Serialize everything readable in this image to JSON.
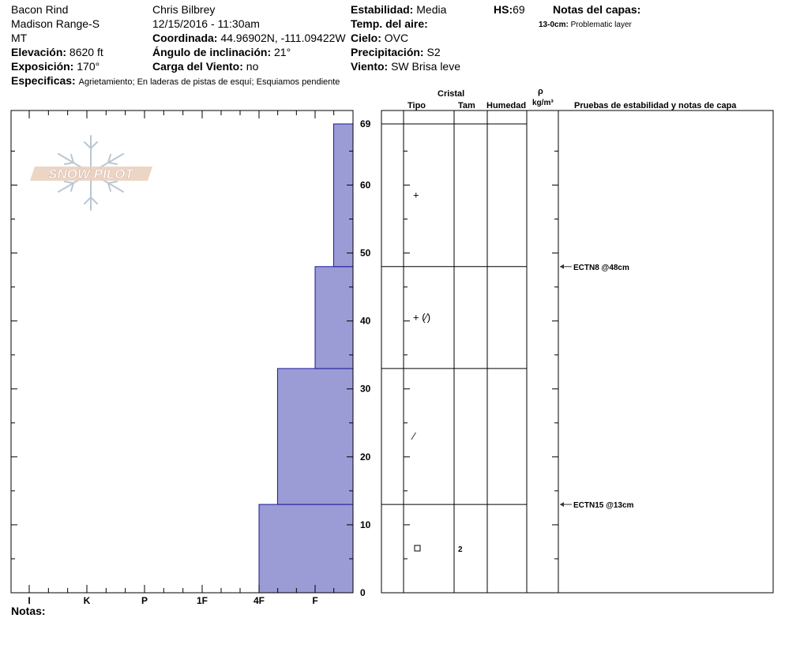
{
  "header": {
    "site": "Bacon Rind",
    "range": "Madison Range-S",
    "state": "MT",
    "elevation_label": "Elevación:",
    "elevation_value": "8620 ft",
    "aspect_label": "Exposición:",
    "aspect_value": "170°",
    "observer": "Chris Bilbrey",
    "datetime": "12/15/2016 - 11:30am",
    "coord_label": "Coordinada:",
    "coord_value": "44.96902N, -111.09422W",
    "slope_label": "Ángulo de inclinación:",
    "slope_value": "21°",
    "wind_load_label": "Carga del Viento:",
    "wind_load_value": "no",
    "stability_label": "Estabilidad:",
    "stability_value": "Media",
    "air_temp_label": "Temp. del aire:",
    "sky_label": "Cielo:",
    "sky_value": "OVC",
    "precip_label": "Precipitación:",
    "precip_value": "S2",
    "wind_label": "Viento:",
    "wind_value": "SW Brisa leve",
    "hs_label": "HS:",
    "hs_value": "69",
    "layer_notes_label": "Notas del capas:",
    "layer_note_depth": "13-0cm:",
    "layer_note_text": "Problematic layer",
    "specifics_label": "Especificas:",
    "specifics_value": "Agrietamiento;  En laderas de pistas de esquí;  Esquiamos pendiente"
  },
  "columns": {
    "crystal": "Cristal",
    "type": "Tipo",
    "size": "Tam",
    "humidity": "Humedad",
    "rho": "ρ",
    "density_unit": "kg/m³",
    "tests": "Pruebas de estabilidad y notas de capa"
  },
  "notes_label": "Notas:",
  "logo_text": "SNOW PILOT",
  "colors": {
    "hardness_fill": "#9b9bd5",
    "hardness_stroke": "#1a1a9a"
  },
  "chart_data": {
    "type": "bar",
    "title": "",
    "xlabel": "",
    "ylabel": "",
    "x_categories": [
      "I",
      "K",
      "P",
      "1F",
      "4F",
      "F"
    ],
    "ylim": [
      0,
      69
    ],
    "y_ticks": [
      "0",
      "10",
      "20",
      "30",
      "40",
      "50",
      "60",
      "69"
    ],
    "hardness_profile": [
      {
        "bottom": 0,
        "top": 13,
        "hardness_index": 4.0
      },
      {
        "bottom": 13,
        "top": 33,
        "hardness_index": 4.33
      },
      {
        "bottom": 33,
        "top": 48,
        "hardness_index": 5.0
      },
      {
        "bottom": 48,
        "top": 69,
        "hardness_index": 5.33
      }
    ],
    "layers": [
      {
        "bottom": 48,
        "top": 69,
        "grain": "+",
        "size": ""
      },
      {
        "bottom": 33,
        "top": 48,
        "grain": "+ (⁄)",
        "size": ""
      },
      {
        "bottom": 13,
        "top": 33,
        "grain": "⁄",
        "size": ""
      },
      {
        "bottom": 0,
        "top": 13,
        "grain": "□",
        "size": "2"
      }
    ],
    "tests": [
      {
        "depth": 48,
        "label": "ECTN8 @48cm"
      },
      {
        "depth": 13,
        "label": "ECTN15 @13cm"
      }
    ]
  }
}
